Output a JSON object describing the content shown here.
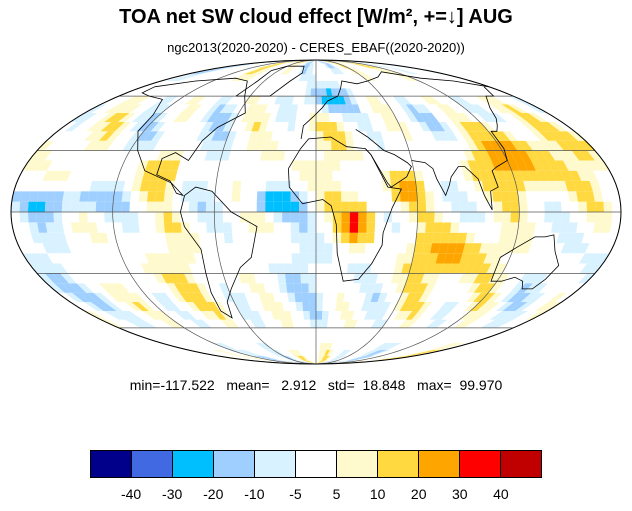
{
  "title": "TOA net SW cloud effect [W/m², +=↓]  AUG",
  "subtitle": "ngc2013(2020-2020) - CERES_EBAF((2020-2020))",
  "stats": {
    "text": "min=-117.522   mean=   2.912   std=  18.848   max=  99.970",
    "min": -117.522,
    "mean": 2.912,
    "std": 18.848,
    "max": 99.97
  },
  "map": {
    "projection": "Mollweide",
    "field": "TOA net SW cloud effect difference",
    "month": "AUG"
  },
  "colorbar": {
    "colors": [
      "#00008b",
      "#4169e1",
      "#00bfff",
      "#9fcfff",
      "#d9f2ff",
      "#ffffff",
      "#fffacd",
      "#ffd93f",
      "#ffa500",
      "#ff0000",
      "#c00000"
    ],
    "labels": [
      "-40",
      "-30",
      "-20",
      "-10",
      "-5",
      "5",
      "10",
      "20",
      "30",
      "40"
    ]
  }
}
